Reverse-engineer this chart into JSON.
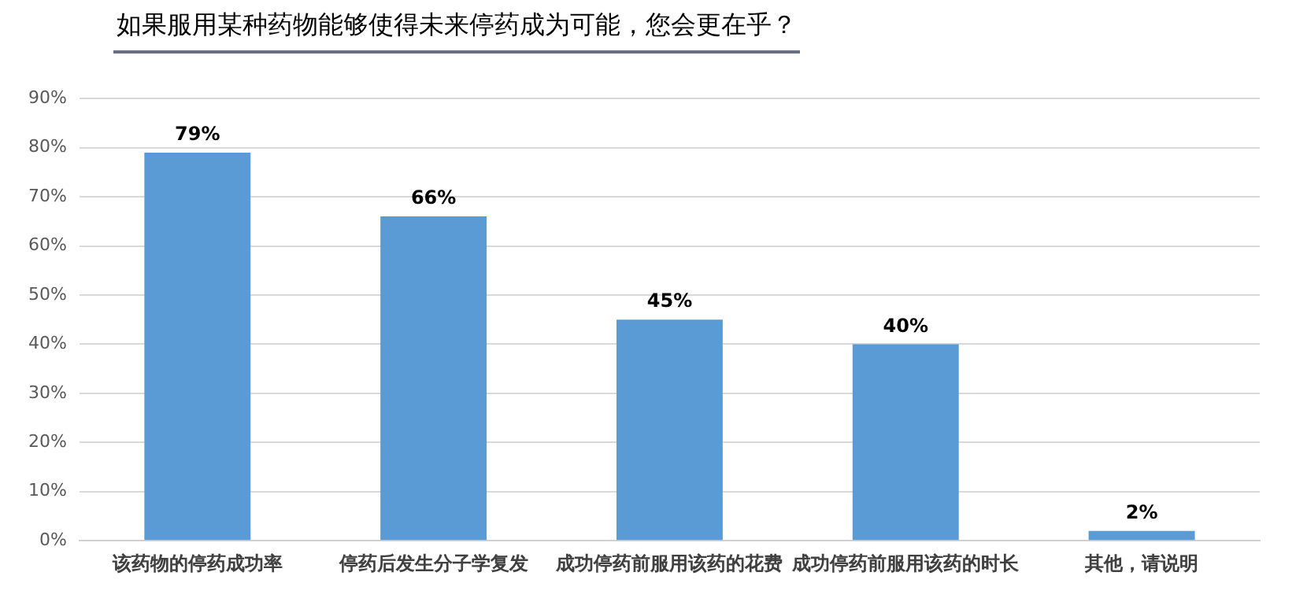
{
  "chart_data": {
    "type": "bar",
    "title": "如果服用某种药物能够使得未来停药成为可能，您会更在乎？",
    "categories": [
      "该药物的停药成功率",
      "停药后发生分子学复发",
      "成功停药前服用该药的花费",
      "成功停药前服用该药的时长",
      "其他，请说明"
    ],
    "values": [
      79,
      66,
      45,
      40,
      2
    ],
    "value_labels": [
      "79%",
      "66%",
      "45%",
      "40%",
      "2%"
    ],
    "color": "#5b9bd5",
    "ylim": [
      0,
      90
    ],
    "yticks": [
      {
        "value": 0,
        "label": "0%"
      },
      {
        "value": 10,
        "label": "10%"
      },
      {
        "value": 20,
        "label": "20%"
      },
      {
        "value": 30,
        "label": "30%"
      },
      {
        "value": 40,
        "label": "40%"
      },
      {
        "value": 50,
        "label": "50%"
      },
      {
        "value": 60,
        "label": "60%"
      },
      {
        "value": 70,
        "label": "70%"
      },
      {
        "value": 80,
        "label": "80%"
      },
      {
        "value": 90,
        "label": "90%"
      }
    ],
    "grid": "y"
  }
}
